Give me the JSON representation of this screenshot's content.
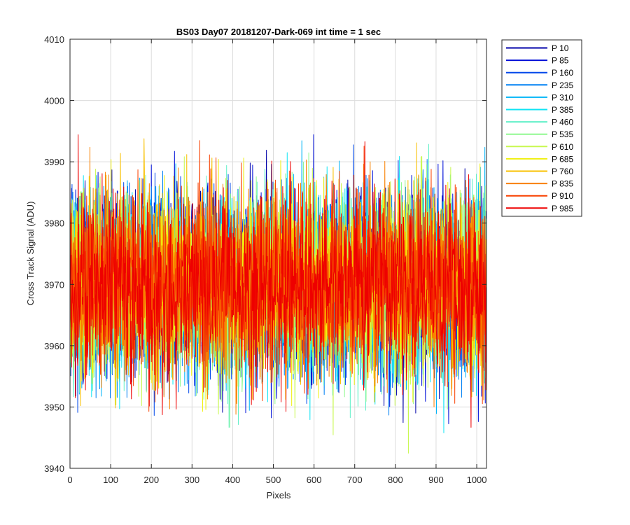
{
  "chart_data": {
    "type": "line",
    "title": "BS03 Day07 20181207-Dark-069 int time = 1 sec",
    "xlabel": "Pixels",
    "ylabel": "Cross Track Signal (ADU)",
    "xlim": [
      0,
      1024
    ],
    "ylim": [
      3940,
      4010
    ],
    "xticks": [
      0,
      100,
      200,
      300,
      400,
      500,
      600,
      700,
      800,
      900,
      1000
    ],
    "yticks": [
      3940,
      3950,
      3960,
      3970,
      3980,
      3990,
      4000,
      4010
    ],
    "grid": true,
    "legend_position": "outside-right",
    "noise_center": 3970,
    "series": [
      {
        "name": "P 10",
        "color": "#0000a8"
      },
      {
        "name": "P 85",
        "color": "#0010d8"
      },
      {
        "name": "P 160",
        "color": "#0048ea"
      },
      {
        "name": "P 235",
        "color": "#0080f4"
      },
      {
        "name": "P 310",
        "color": "#00b4f8"
      },
      {
        "name": "P 385",
        "color": "#10e4f4"
      },
      {
        "name": "P 460",
        "color": "#60f0c8"
      },
      {
        "name": "P 535",
        "color": "#90f890"
      },
      {
        "name": "P 610",
        "color": "#c8f850"
      },
      {
        "name": "P 685",
        "color": "#f0f010"
      },
      {
        "name": "P 760",
        "color": "#f8c000"
      },
      {
        "name": "P 835",
        "color": "#f88000"
      },
      {
        "name": "P 910",
        "color": "#f84000"
      },
      {
        "name": "P 985",
        "color": "#ee0000"
      }
    ]
  }
}
